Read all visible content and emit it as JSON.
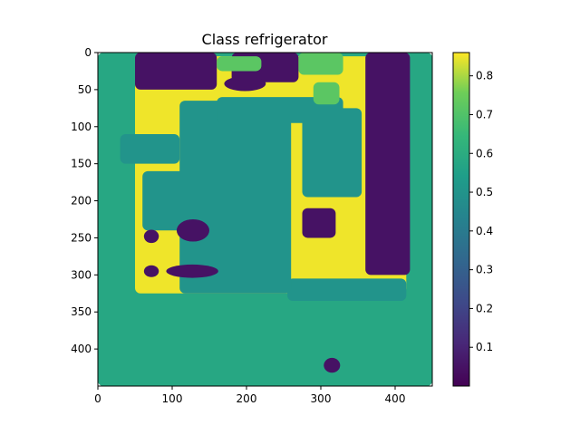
{
  "chart_data": {
    "type": "heatmap",
    "title": "Class refrigerator",
    "xlabel": "",
    "ylabel": "",
    "x_range": [
      0,
      450
    ],
    "y_range": [
      0,
      450
    ],
    "y_inverted": true,
    "x_ticks": [
      0,
      100,
      200,
      300,
      400
    ],
    "y_ticks": [
      0,
      50,
      100,
      150,
      200,
      250,
      300,
      350,
      400
    ],
    "colorbar": {
      "colormap": "viridis",
      "range": [
        0.0,
        0.86
      ],
      "ticks": [
        0.1,
        0.2,
        0.3,
        0.4,
        0.5,
        0.6,
        0.7,
        0.8
      ],
      "tick_labels": [
        "0.1",
        "0.2",
        "0.3",
        "0.4",
        "0.5",
        "0.6",
        "0.7",
        "0.8"
      ]
    },
    "regions": [
      {
        "name": "background",
        "value": 0.58,
        "shape": "rect",
        "x": [
          0,
          450
        ],
        "y": [
          0,
          450
        ]
      },
      {
        "name": "object-area",
        "value": 0.85,
        "shape": "rect",
        "x": [
          50,
          415
        ],
        "y": [
          5,
          325
        ]
      },
      {
        "name": "bottom-band",
        "value": 0.5,
        "shape": "rect",
        "x": [
          255,
          415
        ],
        "y": [
          305,
          335
        ]
      },
      {
        "name": "left-teal-band",
        "value": 0.5,
        "shape": "rect",
        "x": [
          30,
          110
        ],
        "y": [
          110,
          150
        ]
      },
      {
        "name": "center-teal",
        "value": 0.5,
        "shape": "rect",
        "x": [
          110,
          260
        ],
        "y": [
          65,
          325
        ]
      },
      {
        "name": "upper-teal",
        "value": 0.5,
        "shape": "rect",
        "x": [
          160,
          330
        ],
        "y": [
          60,
          95
        ]
      },
      {
        "name": "right-teal",
        "value": 0.5,
        "shape": "rect",
        "x": [
          275,
          355
        ],
        "y": [
          75,
          195
        ]
      },
      {
        "name": "mid-teal",
        "value": 0.5,
        "shape": "rect",
        "x": [
          60,
          125
        ],
        "y": [
          160,
          240
        ]
      },
      {
        "name": "top-purple",
        "value": 0.05,
        "shape": "rect",
        "x": [
          50,
          160
        ],
        "y": [
          0,
          50
        ]
      },
      {
        "name": "top-center-purple",
        "value": 0.05,
        "shape": "rect",
        "x": [
          180,
          270
        ],
        "y": [
          0,
          40
        ]
      },
      {
        "name": "right-column-purple",
        "value": 0.05,
        "shape": "rect",
        "x": [
          360,
          420
        ],
        "y": [
          0,
          300
        ]
      },
      {
        "name": "inner-purple",
        "value": 0.05,
        "shape": "rect",
        "x": [
          275,
          320
        ],
        "y": [
          210,
          250
        ]
      },
      {
        "name": "top-green-left",
        "value": 0.72,
        "shape": "rect",
        "x": [
          160,
          220
        ],
        "y": [
          5,
          25
        ]
      },
      {
        "name": "top-green-right",
        "value": 0.72,
        "shape": "rect",
        "x": [
          270,
          330
        ],
        "y": [
          0,
          30
        ]
      },
      {
        "name": "upper-green",
        "value": 0.72,
        "shape": "rect",
        "x": [
          290,
          325
        ],
        "y": [
          40,
          70
        ]
      },
      {
        "name": "blob-1",
        "value": 0.05,
        "shape": "ellipse",
        "cx": 72,
        "cy": 248,
        "rx": 10,
        "ry": 9
      },
      {
        "name": "blob-2",
        "value": 0.05,
        "shape": "ellipse",
        "cx": 72,
        "cy": 295,
        "rx": 10,
        "ry": 8
      },
      {
        "name": "blob-3",
        "value": 0.05,
        "shape": "ellipse",
        "cx": 128,
        "cy": 240,
        "rx": 22,
        "ry": 15
      },
      {
        "name": "blob-4",
        "value": 0.05,
        "shape": "ellipse",
        "cx": 127,
        "cy": 295,
        "rx": 35,
        "ry": 9
      },
      {
        "name": "blob-5",
        "value": 0.05,
        "shape": "ellipse",
        "cx": 315,
        "cy": 422,
        "rx": 11,
        "ry": 10
      },
      {
        "name": "blob-6",
        "value": 0.05,
        "shape": "ellipse",
        "cx": 198,
        "cy": 42,
        "rx": 28,
        "ry": 10
      }
    ]
  }
}
